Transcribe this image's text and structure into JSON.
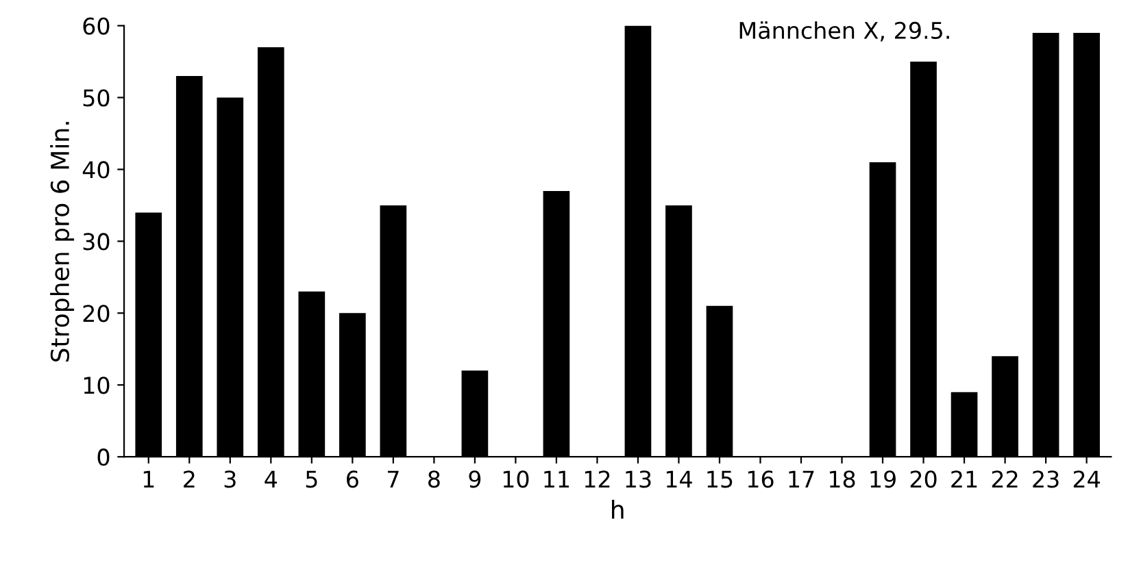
{
  "chart_data": {
    "type": "bar",
    "xlabel": "h",
    "ylabel": "Strophen pro 6 Min.",
    "annotations": [
      "Männchen X, 29.5."
    ],
    "categories": [
      "1",
      "2",
      "3",
      "4",
      "5",
      "6",
      "7",
      "8",
      "9",
      "10",
      "11",
      "12",
      "13",
      "14",
      "15",
      "16",
      "17",
      "18",
      "19",
      "20",
      "21",
      "22",
      "23",
      "24"
    ],
    "values": [
      34,
      53,
      50,
      57,
      23,
      20,
      35,
      0,
      12,
      0,
      37,
      0,
      60,
      35,
      21,
      0,
      0,
      0,
      41,
      55,
      9,
      14,
      59,
      59
    ],
    "color": "#000000",
    "ylim": [
      0,
      60
    ],
    "yticks": [
      0,
      10,
      20,
      30,
      40,
      50,
      60
    ],
    "grid": false
  }
}
